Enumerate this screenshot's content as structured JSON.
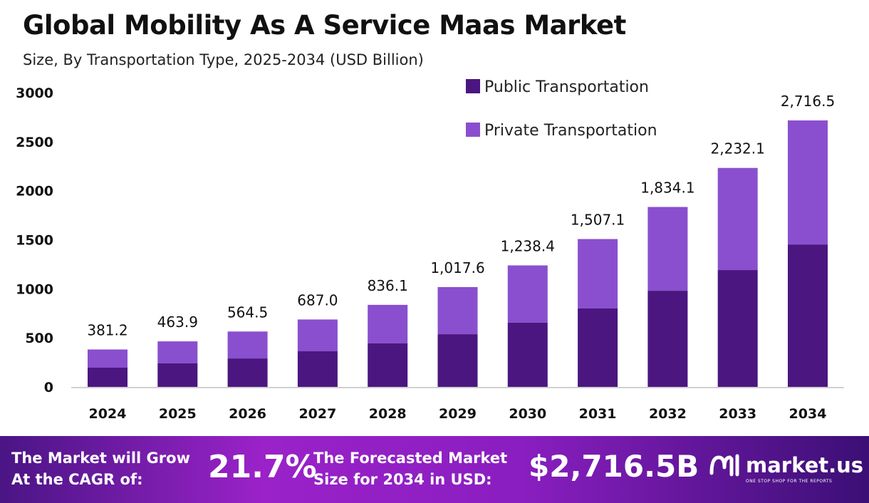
{
  "title": "Global Mobility As A Service Maas Market",
  "subtitle": "Size, By Transportation Type, 2025-2034 (USD Billion)",
  "colors": {
    "public": "#4b1680",
    "private": "#8a4fce"
  },
  "chart_data": {
    "type": "bar",
    "stacked": true,
    "categories": [
      "2024",
      "2025",
      "2026",
      "2027",
      "2028",
      "2029",
      "2030",
      "2031",
      "2032",
      "2033",
      "2034"
    ],
    "series": [
      {
        "name": "Public Transportation",
        "values": [
          196,
          240,
          290,
          363,
          443,
          537,
          654,
          799,
          980,
          1191,
          1452
        ]
      },
      {
        "name": "Private Transportation",
        "values": [
          185.2,
          223.9,
          274.5,
          324.0,
          393.1,
          480.6,
          584.4,
          708.1,
          854.1,
          1041.1,
          1264.5
        ]
      }
    ],
    "totals": [
      "381.2",
      "463.9",
      "564.5",
      "687.0",
      "836.1",
      "1,017.6",
      "1,238.4",
      "1,507.1",
      "1,834.1",
      "2,232.1",
      "2,716.5"
    ],
    "yticks": [
      "0",
      "500",
      "1000",
      "1500",
      "2000",
      "2500",
      "3000"
    ],
    "ylim": [
      0,
      3000
    ],
    "legend_position": "top-right"
  },
  "footer": {
    "cagr_label_1": "The Market will Grow",
    "cagr_label_2": "At the CAGR of:",
    "cagr_value": "21.7%",
    "forecast_label_1": "The Forecasted Market",
    "forecast_label_2": "Size for 2034 in USD:",
    "forecast_value": "$2,716.5B",
    "logo_name": "market.us",
    "logo_tagline": "ONE STOP SHOP FOR THE REPORTS"
  }
}
